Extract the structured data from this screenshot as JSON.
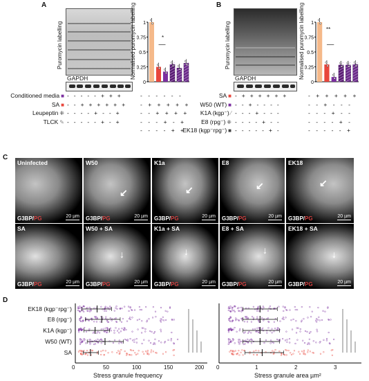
{
  "panels": {
    "a": "A",
    "b": "B",
    "c": "C",
    "d": "D"
  },
  "panelA": {
    "ylabel_blot": "Puromycin labelling",
    "gapdh": "GAPDH",
    "chart_ylabel": "Normalised puromycin labelling",
    "yticks": [
      "1",
      "0.75",
      "0.5",
      "0.25",
      "0"
    ],
    "star": "*",
    "rows": [
      {
        "label": "Conditioned media",
        "sym": "■",
        "color": "#7b2fa0",
        "vals": "- - - - - + + +"
      },
      {
        "label": "SA",
        "sym": "■",
        "color": "#e8463c",
        "vals": "- - + + + + + +"
      },
      {
        "label": "Leupeptin",
        "sym": "⁜",
        "color": "#333333",
        "vals": "- - - - + - - +"
      },
      {
        "label": "TLCK",
        "sym": "✎",
        "color": "#888888",
        "vals": "- - - - - + - +"
      }
    ],
    "chart_rows": [
      "- - - - - -",
      "- + + + + +",
      "- - + + + +",
      "- - - + - +",
      "- - - - + +"
    ]
  },
  "panelB": {
    "ylabel_blot": "Puromycin labelling",
    "gapdh": "GAPDH",
    "chart_ylabel": "Normalised puromycin labelling",
    "yticks": [
      "1",
      "0.75",
      "0.5",
      "0.25",
      "0"
    ],
    "star": "**",
    "rows": [
      {
        "label": "SA",
        "sym": "■",
        "color": "#e8463c",
        "vals": "- + + + + + +"
      },
      {
        "label": "W50 (WT)",
        "sym": "■",
        "color": "#7b2fa0",
        "vals": "- - + - - - -"
      },
      {
        "label": "K1A (kgp⁻)",
        "sym": "⁄",
        "color": "#888888",
        "vals": "- - - + - - -"
      },
      {
        "label": "E8 (rpg⁻)",
        "sym": "⁜",
        "color": "#333333",
        "vals": "- - - - + - -"
      },
      {
        "label": "EK18 (kgp⁻rpg⁻)",
        "sym": "■",
        "color": "#444444",
        "vals": "- - - - - + -"
      }
    ],
    "chart_rows": [
      "- + + + + +",
      "- - + - - -",
      "- - - + - -",
      "- - - - + -",
      "- - - - - +"
    ]
  },
  "panelC": {
    "scalebar": "20 µm",
    "channel_prefix": "G3BP/",
    "channel_suffix": "PG",
    "top": [
      "Uninfected",
      "W50",
      "K1a",
      "E8",
      "EK18"
    ],
    "bottom": [
      "SA",
      "W50 + SA",
      "K1a + SA",
      "E8 + SA",
      "EK18 + SA"
    ]
  },
  "panelD": {
    "categories": [
      "EK18 (kgp⁻rpg⁻)",
      "E8 (rpg⁻)",
      "K1A (kgp⁻)",
      "W50 (WT)",
      "SA"
    ],
    "left_xlabel": "Stress granule frequency",
    "left_xticks": [
      "0",
      "50",
      "100",
      "150",
      "200"
    ],
    "right_xlabel": "Stress granule area µm²",
    "right_xticks": [
      "0",
      "1",
      "2",
      "3"
    ]
  },
  "chart_data": [
    {
      "type": "bar",
      "title": "",
      "ylabel": "Normalised puromycin labelling",
      "ylim": [
        0,
        1
      ],
      "series": [
        {
          "values": [
            1.0,
            0.25,
            0.17,
            0.29,
            0.23,
            0.31
          ]
        }
      ],
      "colors": [
        "#f5b98a",
        "#e8463c",
        "#7b2fa0",
        "#5a1d74",
        "#6b2b8a",
        "#6b2b8a"
      ]
    },
    {
      "type": "bar",
      "title": "",
      "ylabel": "Normalised puromycin labelling",
      "ylim": [
        0,
        1
      ],
      "series": [
        {
          "values": [
            1.0,
            0.29,
            0.08,
            0.28,
            0.28,
            0.29
          ]
        }
      ],
      "colors": [
        "#f5b98a",
        "#e8463c",
        "#7b2fa0",
        "#5a1d74",
        "#6b2b8a",
        "#6b2b8a"
      ]
    },
    {
      "type": "scatter",
      "xlabel": "Stress granule frequency",
      "xlim": [
        0,
        200
      ],
      "categories": [
        "EK18 (kgp⁻rpg⁻)",
        "E8 (rpg⁻)",
        "K1A (kgp⁻)",
        "W50 (WT)",
        "SA"
      ],
      "means": [
        33,
        40,
        30,
        45,
        23
      ],
      "sd_low": [
        10,
        15,
        13,
        18,
        12
      ],
      "sd_high": [
        55,
        68,
        52,
        73,
        35
      ]
    },
    {
      "type": "scatter",
      "xlabel": "Stress granule area µm²",
      "xlim": [
        0,
        3.3
      ],
      "categories": [
        "EK18 (kgp⁻rpg⁻)",
        "E8 (rpg⁻)",
        "K1A (kgp⁻)",
        "W50 (WT)",
        "SA"
      ],
      "means": [
        0.95,
        0.95,
        0.95,
        0.95,
        1.0
      ],
      "sd_low": [
        0.55,
        0.55,
        0.55,
        0.55,
        0.6
      ],
      "sd_high": [
        1.35,
        1.35,
        1.4,
        1.4,
        1.5
      ]
    }
  ]
}
